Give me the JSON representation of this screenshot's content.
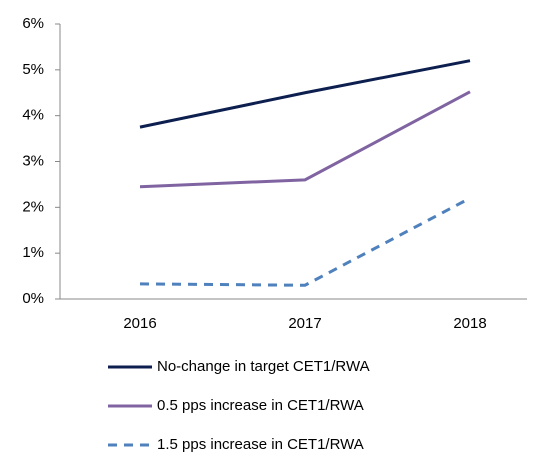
{
  "chart_data": {
    "type": "line",
    "categories": [
      "2016",
      "2017",
      "2018"
    ],
    "series": [
      {
        "name": "No-change in target CET1/RWA",
        "color": "#0d1f4f",
        "line_style": "solid",
        "values": [
          3.75,
          4.5,
          5.2
        ]
      },
      {
        "name": "0.5 pps increase in CET1/RWA",
        "color": "#8064a2",
        "line_style": "solid",
        "values": [
          2.45,
          2.6,
          4.52
        ]
      },
      {
        "name": "1.5 pps increase in CET1/RWA",
        "color": "#4f81bd",
        "line_style": "dashed",
        "values": [
          0.33,
          0.3,
          2.2
        ]
      }
    ],
    "ylim": [
      0,
      6
    ],
    "yticks": [
      {
        "value": 0,
        "label": "0%"
      },
      {
        "value": 1,
        "label": "1%"
      },
      {
        "value": 2,
        "label": "2%"
      },
      {
        "value": 3,
        "label": "3%"
      },
      {
        "value": 4,
        "label": "4%"
      },
      {
        "value": 5,
        "label": "5%"
      },
      {
        "value": 6,
        "label": "6%"
      }
    ],
    "grid": false,
    "legend": "bottom"
  }
}
